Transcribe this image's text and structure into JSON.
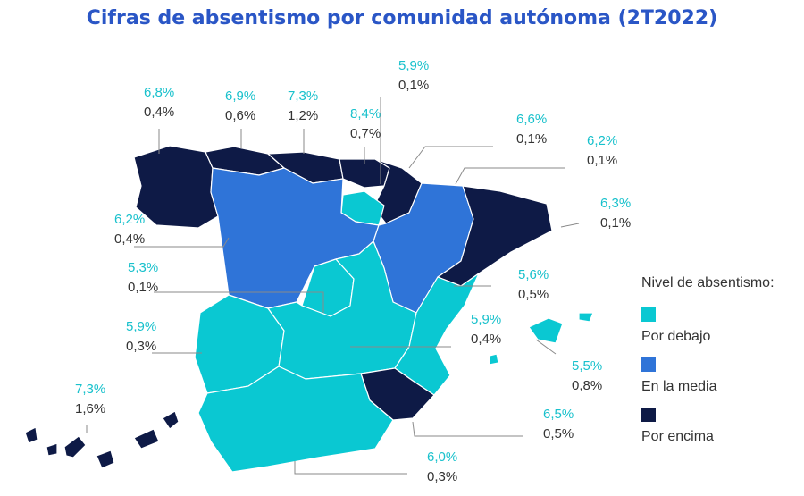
{
  "title": "Cifras de absentismo por comunidad autónoma (2T2022)",
  "legend": {
    "title": "Nivel de absentismo:",
    "items": [
      {
        "key": "below",
        "label": "Por debajo",
        "color": "#0ac8d2"
      },
      {
        "key": "average",
        "label": "En la media",
        "color": "#2f74d8"
      },
      {
        "key": "above",
        "label": "Por encima",
        "color": "#0e1a46"
      }
    ]
  },
  "label_color": "#19c1cc",
  "regions": [
    {
      "id": "galicia",
      "level": "above",
      "rate": "6,8%",
      "change": "0,4%"
    },
    {
      "id": "asturias",
      "level": "above",
      "rate": "6,9%",
      "change": "0,6%"
    },
    {
      "id": "cantabria",
      "level": "above",
      "rate": "7,3%",
      "change": "1,2%"
    },
    {
      "id": "pais-vasco",
      "level": "above",
      "rate": "8,4%",
      "change": "0,7%"
    },
    {
      "id": "navarra",
      "level": "above",
      "rate": "5,9%",
      "change": "0,1%"
    },
    {
      "id": "aragon",
      "level": "average",
      "rate": "6,6%",
      "change": "0,1%"
    },
    {
      "id": "cataluna",
      "level": "above",
      "rate": "6,2%",
      "change": "0,1%"
    },
    {
      "id": "la-rioja",
      "level": "below",
      "rate": "6,3%",
      "change": "0,1%"
    },
    {
      "id": "castilla-leon",
      "level": "average",
      "rate": "6,2%",
      "change": "0,4%"
    },
    {
      "id": "madrid",
      "level": "below",
      "rate": "5,3%",
      "change": "0,1%"
    },
    {
      "id": "comunidad-valenciana",
      "level": "below",
      "rate": "5,6%",
      "change": "0,5%"
    },
    {
      "id": "extremadura",
      "level": "below",
      "rate": "5,9%",
      "change": "0,3%"
    },
    {
      "id": "castilla-la-mancha",
      "level": "below",
      "rate": "5,9%",
      "change": "0,4%"
    },
    {
      "id": "baleares",
      "level": "below",
      "rate": "5,5%",
      "change": "0,8%"
    },
    {
      "id": "canarias",
      "level": "above",
      "rate": "7,3%",
      "change": "1,6%"
    },
    {
      "id": "murcia",
      "level": "above",
      "rate": "6,5%",
      "change": "0,5%"
    },
    {
      "id": "andalucia",
      "level": "below",
      "rate": "6,0%",
      "change": "0,3%"
    }
  ]
}
